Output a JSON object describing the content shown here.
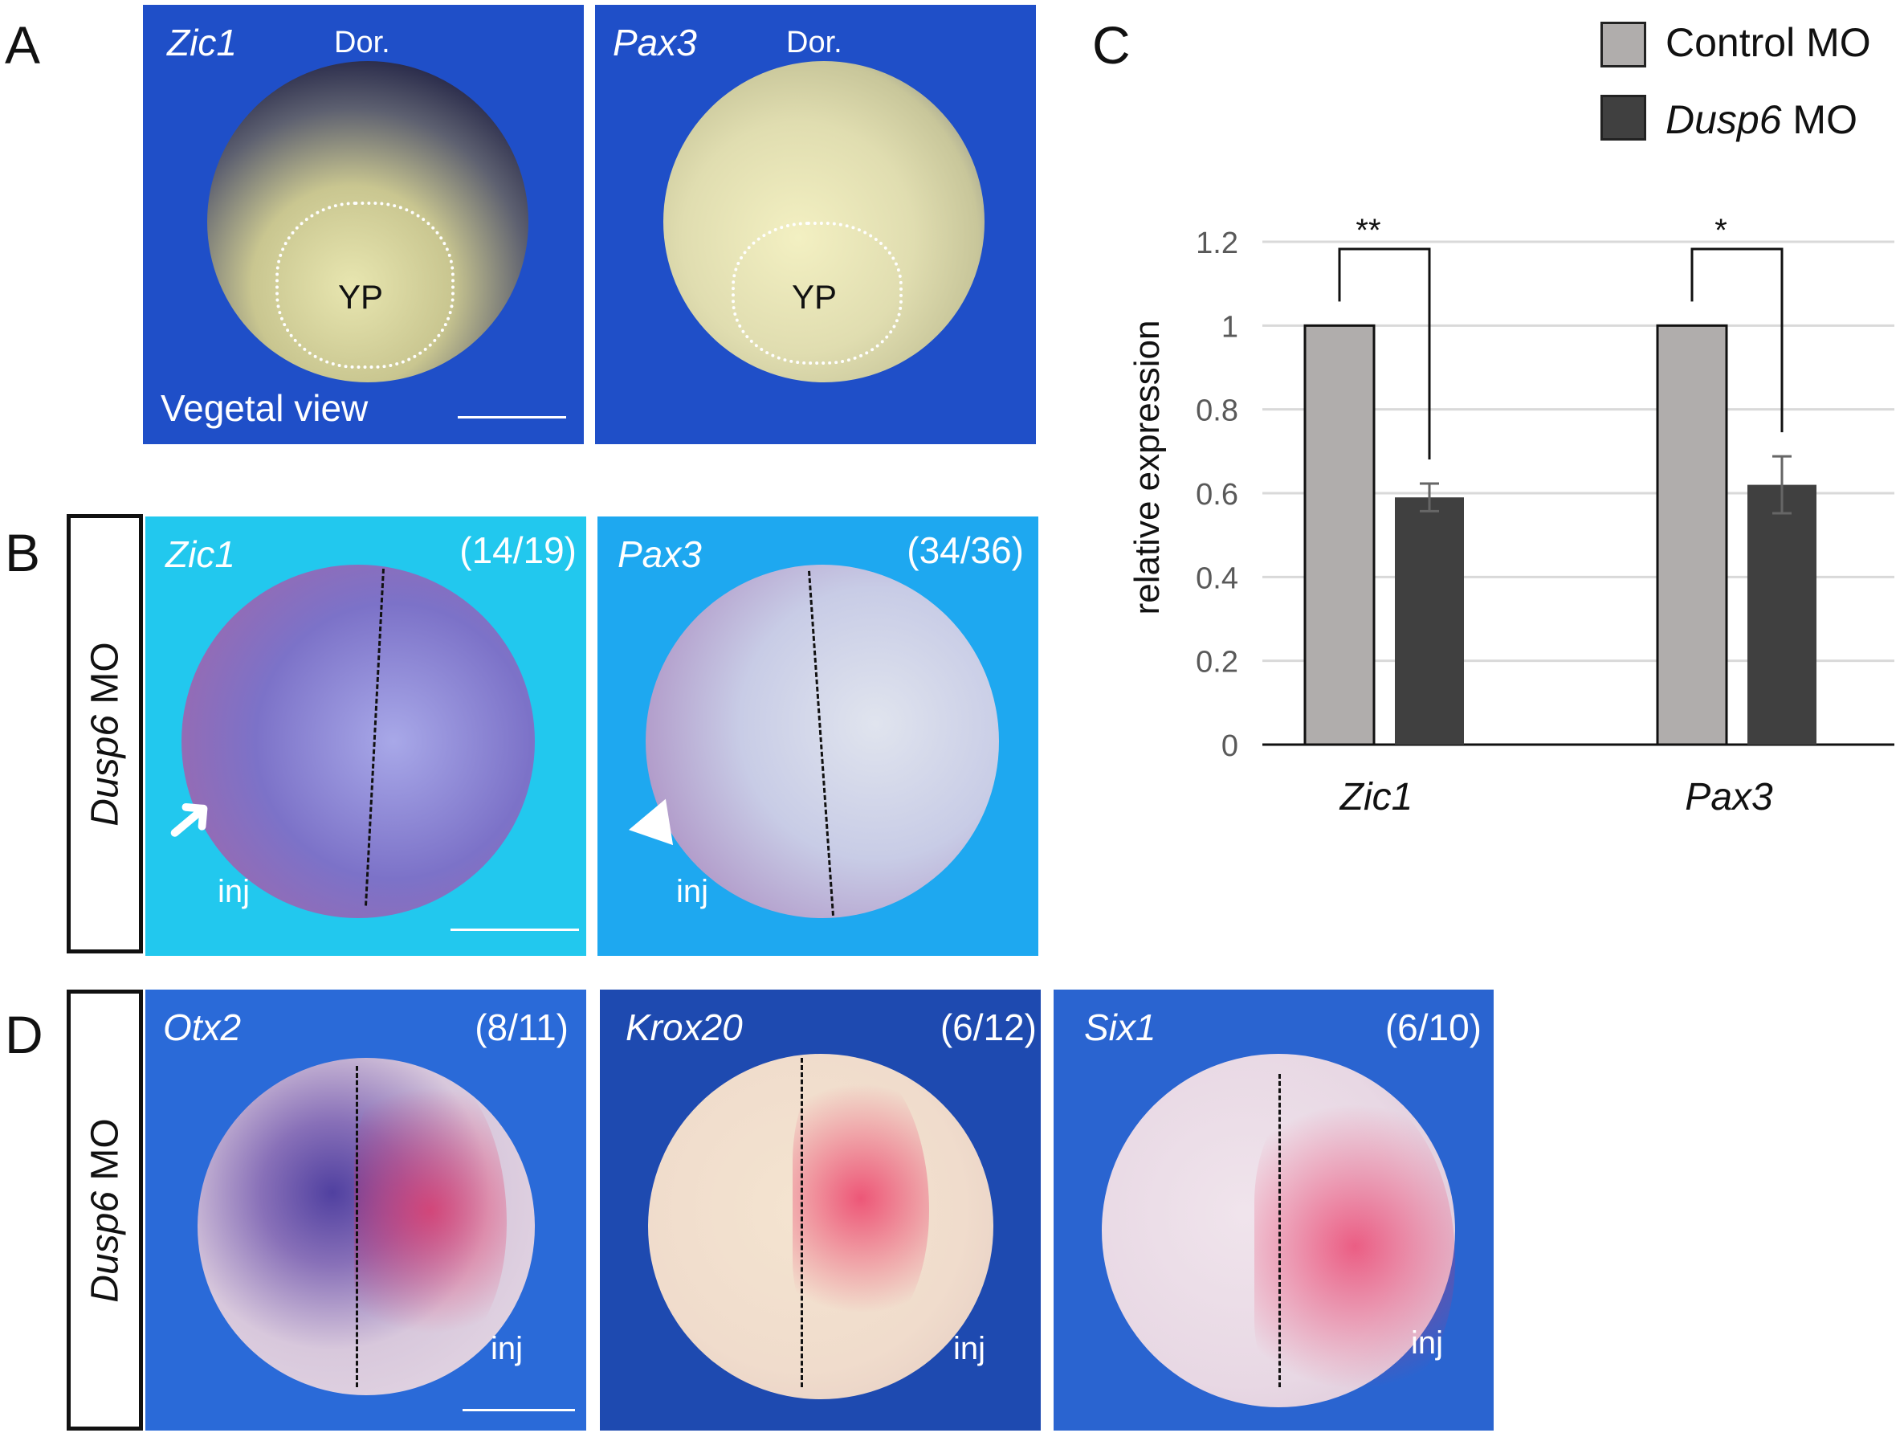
{
  "panel_letters": [
    "A",
    "B",
    "C",
    "D"
  ],
  "panel_a": {
    "images": [
      {
        "gene": "Zic1",
        "orientation": "Dor.",
        "region": "YP",
        "view": "Vegetal view"
      },
      {
        "gene": "Pax3",
        "orientation": "Dor.",
        "region": "YP"
      }
    ]
  },
  "panel_b": {
    "side_label_gene": "Dusp6",
    "side_label_rest": " MO",
    "images": [
      {
        "gene": "Zic1",
        "count": "(14/19)",
        "inj": "inj",
        "marker": "arrow-icon"
      },
      {
        "gene": "Pax3",
        "count": "(34/36)",
        "inj": "inj",
        "marker": "arrowhead-icon"
      }
    ]
  },
  "panel_d": {
    "side_label_gene": "Dusp6",
    "side_label_rest": " MO",
    "images": [
      {
        "gene": "Otx2",
        "count": "(8/11)",
        "inj": "inj"
      },
      {
        "gene": "Krox20",
        "count": "(6/12)",
        "inj": "inj"
      },
      {
        "gene": "Six1",
        "count": "(6/10)",
        "inj": "inj"
      }
    ]
  },
  "chart_data": {
    "type": "bar",
    "categories": [
      "Zic1",
      "Pax3"
    ],
    "series": [
      {
        "name": "Control MO",
        "name_italic": "",
        "name_rest": "Control MO",
        "values": [
          1.0,
          1.0
        ],
        "errors": [
          0,
          0
        ],
        "color": "#b0adac"
      },
      {
        "name": "Dusp6 MO",
        "name_italic": "Dusp6",
        "name_rest": " MO",
        "values": [
          0.59,
          0.62
        ],
        "errors": [
          0.033,
          0.068
        ],
        "color": "#404040"
      }
    ],
    "ylabel": "relative expression",
    "yticks": [
      "0",
      "0.2",
      "0.4",
      "0.6",
      "0.8",
      "1",
      "1.2"
    ],
    "ylim": [
      0,
      1.2
    ],
    "grid": true,
    "legend": "top-right",
    "significance": [
      "**",
      "*"
    ]
  }
}
